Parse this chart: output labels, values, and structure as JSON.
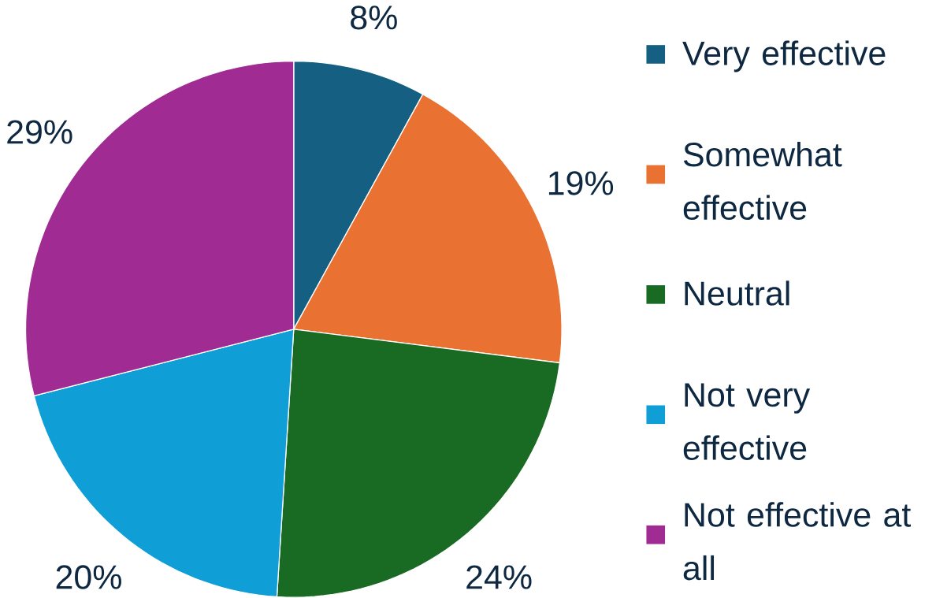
{
  "chart_data": {
    "type": "pie",
    "categories": [
      "Very effective",
      "Somewhat effective",
      "Neutral",
      "Not very effective",
      "Not effective at all"
    ],
    "values": [
      8,
      19,
      24,
      20,
      29
    ],
    "value_labels": [
      "8%",
      "19%",
      "24%",
      "20%",
      "29%"
    ],
    "colors": [
      "#156082",
      "#e97132",
      "#196b24",
      "#0f9ed5",
      "#a02b93"
    ],
    "legend": "right"
  }
}
